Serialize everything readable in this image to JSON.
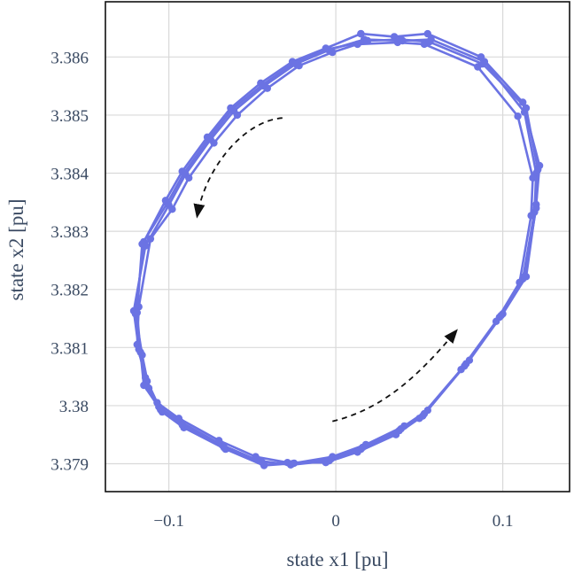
{
  "chart_data": {
    "type": "scatter",
    "mode": "lines+markers",
    "title": "",
    "xlabel": "state x1 [pu]",
    "ylabel": "state x2 [pu]",
    "xlim": [
      -0.138,
      0.14
    ],
    "ylim": [
      3.37852,
      3.38695
    ],
    "xticks": [
      -0.1,
      0,
      0.1
    ],
    "xtick_labels": [
      "−0.1",
      "0",
      "0.1"
    ],
    "yticks": [
      3.379,
      3.38,
      3.381,
      3.382,
      3.383,
      3.384,
      3.385,
      3.386
    ],
    "ytick_labels": [
      "3.379",
      "3.38",
      "3.381",
      "3.382",
      "3.383",
      "3.384",
      "3.385",
      "3.386"
    ],
    "grid": true,
    "legend": "none",
    "series_color": "#6b73e3",
    "series": [
      {
        "points": [
          [
            0.015,
            3.3864
          ],
          [
            0.035,
            3.38635
          ],
          [
            0.055,
            3.3864
          ],
          [
            0.087,
            3.386
          ],
          [
            0.112,
            3.38522
          ],
          [
            0.122,
            3.38413
          ],
          [
            0.12,
            3.38346
          ],
          [
            0.114,
            3.38222
          ],
          [
            0.1,
            3.38158
          ],
          [
            0.08,
            3.38078
          ],
          [
            0.055,
            3.37992
          ],
          [
            0.041,
            3.37965
          ],
          [
            0.018,
            3.37933
          ],
          [
            -0.002,
            3.37912
          ],
          [
            -0.025,
            3.37901
          ],
          [
            -0.043,
            3.37897
          ],
          [
            -0.066,
            3.37925
          ],
          [
            -0.091,
            3.37962
          ],
          [
            -0.104,
            3.37989
          ],
          [
            -0.112,
            3.3803
          ],
          [
            -0.116,
            3.38087
          ],
          [
            -0.12,
            3.38158
          ],
          [
            -0.115,
            3.38282
          ],
          [
            -0.102,
            3.38353
          ],
          [
            -0.092,
            3.38403
          ],
          [
            -0.077,
            3.38462
          ],
          [
            -0.063,
            3.38512
          ],
          [
            -0.045,
            3.38555
          ],
          [
            -0.026,
            3.38592
          ],
          [
            -0.006,
            3.38615
          ],
          [
            0.015,
            3.3864
          ]
        ]
      },
      {
        "points": [
          [
            0.017,
            3.3863
          ],
          [
            0.04,
            3.38628
          ],
          [
            0.057,
            3.3863
          ],
          [
            0.089,
            3.38592
          ],
          [
            0.113,
            3.38505
          ],
          [
            0.12,
            3.384
          ],
          [
            0.119,
            3.38333
          ],
          [
            0.112,
            3.38218
          ],
          [
            0.098,
            3.38152
          ],
          [
            0.077,
            3.38068
          ],
          [
            0.052,
            3.37982
          ],
          [
            0.038,
            3.37957
          ],
          [
            0.015,
            3.37925
          ],
          [
            -0.004,
            3.37905
          ],
          [
            -0.027,
            3.37898
          ],
          [
            -0.046,
            3.37905
          ],
          [
            -0.068,
            3.37932
          ],
          [
            -0.093,
            3.37972
          ],
          [
            -0.106,
            3.37998
          ],
          [
            -0.113,
            3.38042
          ],
          [
            -0.118,
            3.38097
          ],
          [
            -0.121,
            3.38163
          ],
          [
            -0.114,
            3.38275
          ],
          [
            -0.1,
            3.38345
          ],
          [
            -0.09,
            3.38398
          ],
          [
            -0.075,
            3.38458
          ],
          [
            -0.061,
            3.38507
          ],
          [
            -0.043,
            3.3855
          ],
          [
            -0.024,
            3.38588
          ],
          [
            -0.004,
            3.38612
          ],
          [
            0.017,
            3.3863
          ]
        ]
      },
      {
        "points": [
          [
            0.013,
            3.38622
          ],
          [
            0.037,
            3.38625
          ],
          [
            0.053,
            3.38622
          ],
          [
            0.085,
            3.38583
          ],
          [
            0.109,
            3.38498
          ],
          [
            0.118,
            3.38392
          ],
          [
            0.117,
            3.38327
          ],
          [
            0.11,
            3.38212
          ],
          [
            0.096,
            3.38145
          ],
          [
            0.075,
            3.38062
          ],
          [
            0.05,
            3.37978
          ],
          [
            0.036,
            3.3795
          ],
          [
            0.013,
            3.3792
          ],
          [
            -0.006,
            3.37902
          ],
          [
            -0.029,
            3.37902
          ],
          [
            -0.048,
            3.37912
          ],
          [
            -0.07,
            3.3794
          ],
          [
            -0.094,
            3.37978
          ],
          [
            -0.107,
            3.38005
          ],
          [
            -0.114,
            3.38048
          ],
          [
            -0.119,
            3.38105
          ],
          [
            -0.118,
            3.3817
          ],
          [
            -0.111,
            3.38287
          ],
          [
            -0.098,
            3.38338
          ],
          [
            -0.088,
            3.38392
          ],
          [
            -0.073,
            3.38452
          ],
          [
            -0.059,
            3.385
          ],
          [
            -0.041,
            3.38546
          ],
          [
            -0.022,
            3.38585
          ],
          [
            -0.002,
            3.38608
          ],
          [
            0.013,
            3.38622
          ]
        ]
      },
      {
        "points": [
          [
            0.019,
            3.38628
          ],
          [
            0.039,
            3.3863
          ],
          [
            0.056,
            3.38626
          ],
          [
            0.088,
            3.38588
          ],
          [
            0.114,
            3.38512
          ],
          [
            0.121,
            3.38406
          ],
          [
            0.12,
            3.3834
          ],
          [
            0.113,
            3.38222
          ],
          [
            0.099,
            3.38155
          ],
          [
            0.078,
            3.38072
          ],
          [
            0.053,
            3.37986
          ],
          [
            0.039,
            3.3796
          ],
          [
            0.016,
            3.37928
          ],
          [
            -0.003,
            3.37908
          ],
          [
            -0.026,
            3.379
          ],
          [
            -0.044,
            3.37902
          ],
          [
            -0.067,
            3.37928
          ],
          [
            -0.092,
            3.37967
          ],
          [
            -0.105,
            3.37993
          ],
          [
            -0.115,
            3.38035
          ],
          [
            -0.117,
            3.38092
          ],
          [
            -0.119,
            3.3816
          ],
          [
            -0.116,
            3.38278
          ],
          [
            -0.101,
            3.38348
          ],
          [
            -0.091,
            3.384
          ],
          [
            -0.076,
            3.3846
          ],
          [
            -0.062,
            3.3851
          ],
          [
            -0.044,
            3.38552
          ],
          [
            -0.025,
            3.3859
          ],
          [
            -0.005,
            3.38613
          ],
          [
            0.019,
            3.38628
          ]
        ]
      }
    ],
    "annotations": [
      {
        "kind": "dashed-arrow",
        "direction": "counter-clockwise (upper-left)",
        "path": [
          [
            -0.032,
            3.38495
          ],
          [
            -0.055,
            3.3849
          ],
          [
            -0.078,
            3.3841
          ],
          [
            -0.083,
            3.38327
          ]
        ]
      },
      {
        "kind": "dashed-arrow",
        "direction": "counter-clockwise (lower-right)",
        "path": [
          [
            -0.002,
            3.37973
          ],
          [
            0.03,
            3.37995
          ],
          [
            0.052,
            3.3806
          ],
          [
            0.072,
            3.38128
          ]
        ]
      }
    ]
  }
}
